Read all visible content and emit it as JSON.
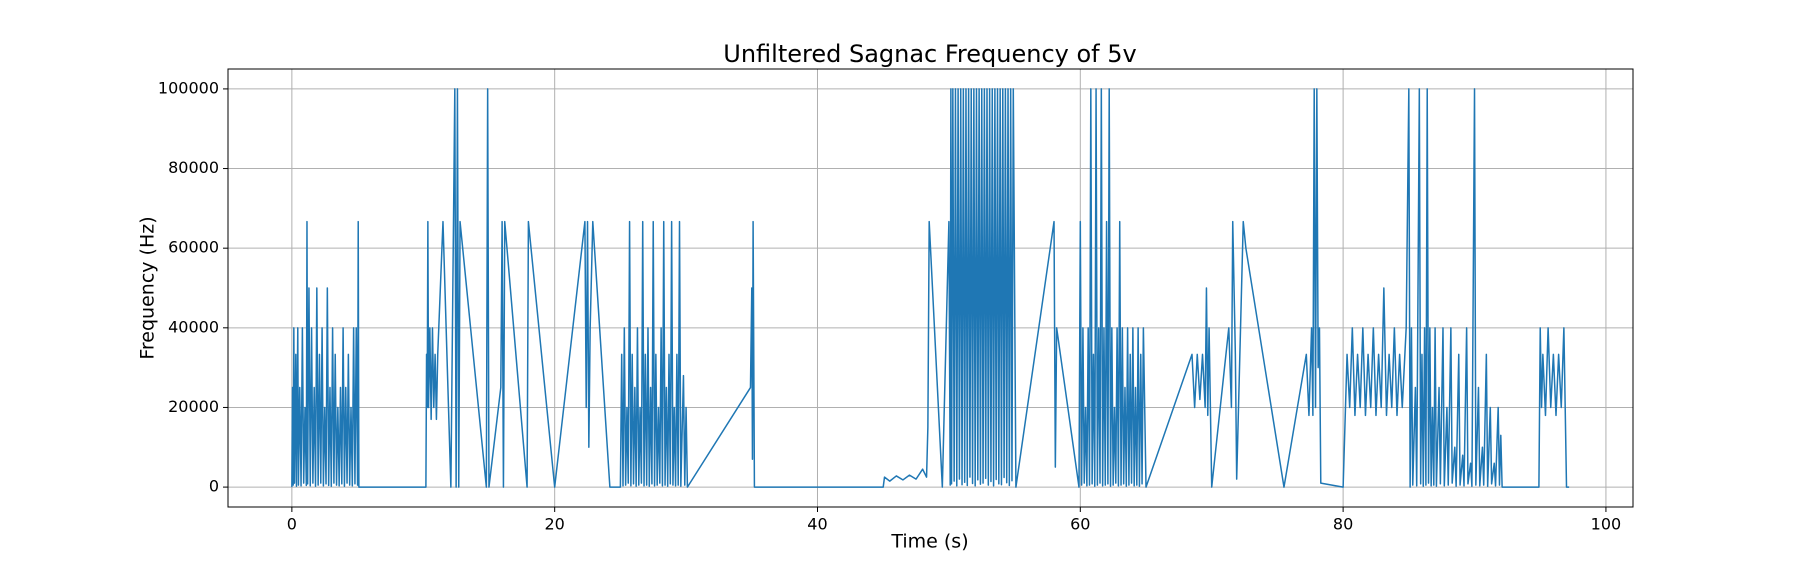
{
  "chart_data": {
    "type": "line",
    "title": "Unfiltered Sagnac Frequency of 5v",
    "x_label": "Time (s)",
    "y_label": "Frequency (Hz)",
    "xlim": [
      -4.86,
      102.06
    ],
    "ylim": [
      -5000,
      105000
    ],
    "xticks": [
      0,
      20,
      40,
      60,
      80,
      100
    ],
    "yticks": [
      0,
      20000,
      40000,
      60000,
      80000,
      100000
    ],
    "grid": true,
    "x": [
      0,
      0.05,
      0.1,
      0.15,
      0.2,
      0.3,
      0.35,
      0.45,
      0.5,
      0.6,
      0.7,
      0.8,
      0.9,
      1.0,
      1.1,
      1.15,
      1.2,
      1.3,
      1.4,
      1.5,
      1.6,
      1.7,
      1.8,
      1.9,
      2.0,
      2.1,
      2.2,
      2.3,
      2.4,
      2.5,
      2.6,
      2.7,
      2.8,
      2.9,
      3.0,
      3.1,
      3.2,
      3.3,
      3.4,
      3.5,
      3.6,
      3.7,
      3.8,
      3.9,
      4.0,
      4.1,
      4.2,
      4.3,
      4.4,
      4.5,
      4.6,
      4.7,
      4.8,
      4.9,
      5.0,
      5.05,
      5.1,
      10.2,
      10.25,
      10.3,
      10.35,
      10.4,
      10.5,
      10.6,
      10.7,
      10.8,
      10.9,
      11.0,
      11.1,
      11.5,
      12.1,
      12.4,
      12.5,
      12.6,
      12.7,
      12.8,
      14.8,
      14.9,
      15.0,
      15.9,
      16.0,
      16.1,
      16.2,
      17.9,
      18.0,
      20.0,
      22.3,
      22.4,
      22.5,
      22.6,
      22.7,
      22.9,
      24.2,
      25.0,
      25.1,
      25.2,
      25.3,
      25.4,
      25.5,
      25.6,
      25.7,
      25.8,
      25.9,
      26.0,
      26.1,
      26.2,
      26.3,
      26.4,
      26.5,
      26.6,
      26.7,
      26.8,
      26.9,
      27.0,
      27.1,
      27.2,
      27.3,
      27.4,
      27.5,
      27.6,
      27.7,
      27.8,
      27.9,
      28.0,
      28.1,
      28.2,
      28.3,
      28.4,
      28.5,
      28.6,
      28.7,
      28.8,
      28.9,
      29.0,
      29.1,
      29.2,
      29.3,
      29.4,
      29.5,
      29.6,
      29.8,
      29.9,
      30.0,
      30.1,
      34.9,
      35.0,
      35.05,
      35.1,
      35.2,
      45.0,
      45.1,
      45.5,
      46.0,
      46.5,
      47.0,
      47.5,
      48.0,
      48.3,
      48.4,
      48.5,
      49.5,
      50.0,
      50.1,
      50.15,
      50.2,
      50.3,
      50.4,
      50.5,
      50.6,
      50.7,
      50.8,
      50.9,
      51.0,
      51.1,
      51.2,
      51.3,
      51.4,
      51.5,
      51.6,
      51.7,
      51.8,
      51.9,
      52.0,
      52.1,
      52.2,
      52.3,
      52.4,
      52.5,
      52.6,
      52.7,
      52.8,
      52.9,
      53.0,
      53.1,
      53.2,
      53.3,
      53.4,
      53.5,
      53.6,
      53.7,
      53.8,
      53.9,
      54.0,
      54.1,
      54.2,
      54.3,
      54.4,
      54.5,
      54.6,
      54.7,
      54.8,
      54.9,
      55.1,
      58.0,
      58.1,
      58.2,
      59.9,
      60.0,
      60.1,
      60.2,
      60.3,
      60.4,
      60.5,
      60.6,
      60.7,
      60.8,
      60.9,
      61.0,
      61.1,
      61.2,
      61.3,
      61.4,
      61.5,
      61.6,
      61.7,
      61.8,
      61.9,
      62.0,
      62.1,
      62.2,
      62.3,
      62.4,
      62.5,
      62.6,
      62.7,
      62.8,
      62.9,
      63.0,
      63.1,
      63.2,
      63.3,
      63.4,
      63.5,
      63.6,
      63.7,
      63.8,
      63.9,
      64.0,
      64.1,
      64.2,
      64.3,
      64.4,
      64.5,
      64.6,
      64.7,
      64.8,
      65.0,
      68.5,
      68.7,
      68.9,
      69.1,
      69.3,
      69.5,
      69.6,
      69.7,
      69.8,
      70.0,
      71.3,
      71.5,
      71.6,
      71.8,
      71.9,
      72.4,
      72.6,
      75.5,
      77.2,
      77.4,
      77.6,
      77.7,
      77.8,
      77.9,
      78.0,
      78.1,
      78.2,
      78.3,
      80.0,
      80.3,
      80.5,
      80.7,
      80.9,
      81.1,
      81.3,
      81.5,
      81.7,
      81.9,
      82.1,
      82.3,
      82.5,
      82.7,
      82.9,
      83.1,
      83.3,
      83.5,
      83.7,
      83.9,
      84.1,
      84.3,
      84.5,
      84.8,
      85.0,
      85.1,
      85.2,
      85.3,
      85.5,
      85.6,
      85.8,
      85.9,
      86.0,
      86.1,
      86.2,
      86.3,
      86.4,
      86.5,
      86.6,
      86.7,
      86.8,
      86.9,
      87.0,
      87.1,
      87.3,
      87.4,
      87.6,
      87.7,
      87.9,
      88.0,
      88.2,
      88.3,
      88.5,
      88.6,
      88.8,
      88.9,
      89.1,
      89.2,
      89.4,
      89.5,
      89.7,
      89.8,
      90.0,
      90.1,
      90.3,
      90.4,
      90.6,
      90.7,
      90.9,
      91.0,
      91.2,
      91.3,
      91.5,
      91.6,
      91.8,
      91.9,
      92.0,
      92.1,
      94.9,
      95.0,
      95.1,
      95.2,
      95.4,
      95.6,
      95.8,
      96.0,
      96.2,
      96.4,
      96.6,
      96.8,
      96.9,
      97.0,
      97.2
    ],
    "series": [
      {
        "color": "#1f77b4",
        "values": [
          0,
          25000,
          500,
          40000,
          1000,
          33333,
          200,
          40000,
          500,
          25000,
          300,
          40000,
          1000,
          20000,
          400,
          66667,
          800,
          50000,
          300,
          40000,
          1000,
          25000,
          200,
          50000,
          500,
          33333,
          1000,
          40000,
          300,
          20000,
          800,
          50000,
          400,
          25000,
          200,
          40000,
          1000,
          33333,
          500,
          20000,
          300,
          25000,
          800,
          40000,
          200,
          25000,
          1000,
          33333,
          500,
          20000,
          300,
          40000,
          800,
          40000,
          500,
          66667,
          0,
          0,
          33333,
          20000,
          66667,
          20000,
          40000,
          17000,
          40000,
          20000,
          33333,
          17000,
          33333,
          66667,
          0,
          100000,
          0,
          100000,
          0,
          66667,
          0,
          100000,
          0,
          25000,
          66667,
          0,
          66667,
          0,
          66667,
          0,
          66667,
          20000,
          66667,
          10000,
          40000,
          66667,
          0,
          0,
          33333,
          300,
          40000,
          500,
          20000,
          1000,
          66667,
          300,
          33333,
          800,
          25000,
          200,
          40000,
          500,
          20000,
          1000,
          66667,
          300,
          33333,
          500,
          40000,
          200,
          25000,
          800,
          66667,
          300,
          33333,
          500,
          20000,
          1000,
          40000,
          300,
          66667,
          500,
          25000,
          200,
          33333,
          800,
          66667,
          500,
          20000,
          300,
          33333,
          500,
          66667,
          200,
          28000,
          500,
          20000,
          0,
          25000,
          50000,
          7000,
          66667,
          0,
          0,
          2500,
          1500,
          2800,
          1800,
          3000,
          2000,
          4500,
          2500,
          15000,
          66667,
          0,
          66667,
          500,
          100000,
          800,
          100000,
          1500,
          100000,
          300,
          100000,
          2000,
          100000,
          600,
          100000,
          1200,
          100000,
          400,
          100000,
          2500,
          100000,
          900,
          100000,
          300,
          100000,
          1800,
          100000,
          700,
          100000,
          1000,
          100000,
          2200,
          100000,
          500,
          100000,
          1400,
          100000,
          300,
          100000,
          1900,
          100000,
          800,
          100000,
          600,
          100000,
          2400,
          100000,
          1100,
          100000,
          400,
          100000,
          1600,
          100000,
          0,
          66667,
          5000,
          40000,
          0,
          66667,
          500,
          40000,
          1000,
          20000,
          300,
          40000,
          500,
          100000,
          800,
          33333,
          200,
          100000,
          500,
          40000,
          1000,
          100000,
          300,
          40000,
          500,
          66667,
          800,
          100000,
          200,
          40000,
          500,
          20000,
          1000,
          40000,
          300,
          66667,
          500,
          40000,
          800,
          25000,
          200,
          40000,
          500,
          33333,
          1000,
          40000,
          300,
          25000,
          500,
          40000,
          200,
          33333,
          800,
          40000,
          0,
          33333,
          20000,
          33333,
          22000,
          33333,
          20000,
          50000,
          18000,
          40000,
          0,
          40000,
          20000,
          66667,
          33333,
          2000,
          66667,
          60000,
          0,
          33333,
          18000,
          40000,
          18000,
          100000,
          20000,
          100000,
          30000,
          40000,
          1000,
          0,
          33333,
          20000,
          40000,
          18000,
          33333,
          20000,
          40000,
          18000,
          33333,
          20000,
          40000,
          18000,
          33333,
          20000,
          50000,
          18000,
          33333,
          20000,
          40000,
          18000,
          33333,
          20000,
          40000,
          100000,
          0,
          40000,
          500,
          25000,
          300,
          100000,
          800,
          33333,
          200,
          40000,
          500,
          100000,
          1000,
          40000,
          300,
          20000,
          500,
          40000,
          200,
          25000,
          800,
          40000,
          300,
          20000,
          500,
          40000,
          1000,
          10000,
          200,
          33333,
          500,
          8000,
          300,
          40000,
          800,
          6000,
          200,
          100000,
          500,
          25000,
          300,
          10000,
          500,
          33333,
          200,
          20000,
          800,
          6000,
          300,
          20000,
          500,
          13000,
          0,
          0,
          40000,
          20000,
          33333,
          18000,
          40000,
          20000,
          33333,
          18000,
          33333,
          20000,
          40000,
          20000,
          0,
          0
        ]
      }
    ]
  }
}
